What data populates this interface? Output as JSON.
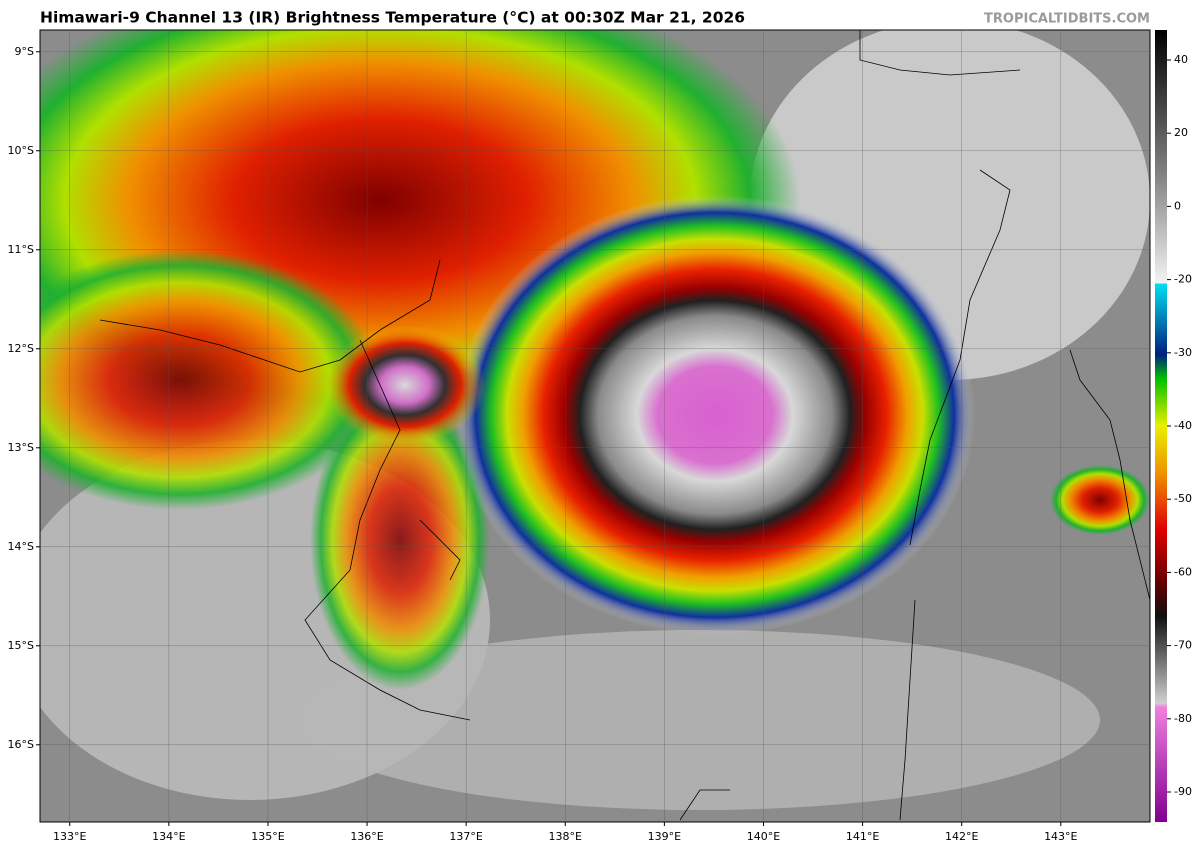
{
  "title": "Himawari-9 Channel 13 (IR) Brightness Temperature (°C) at 00:30Z Mar 21, 2026",
  "credit": "TROPICALTIDBITS.COM",
  "map": {
    "lonlim": [
      132.7,
      143.9
    ],
    "latlim": [
      -8.78,
      -16.78
    ],
    "lat_ticks": [
      {
        "value": -9,
        "label": "9°S"
      },
      {
        "value": -10,
        "label": "10°S"
      },
      {
        "value": -11,
        "label": "11°S"
      },
      {
        "value": -12,
        "label": "12°S"
      },
      {
        "value": -13,
        "label": "13°S"
      },
      {
        "value": -14,
        "label": "14°S"
      },
      {
        "value": -15,
        "label": "15°S"
      },
      {
        "value": -16,
        "label": "16°S"
      }
    ],
    "lon_ticks": [
      {
        "value": 133,
        "label": "133°E"
      },
      {
        "value": 134,
        "label": "134°E"
      },
      {
        "value": 135,
        "label": "135°E"
      },
      {
        "value": 136,
        "label": "136°E"
      },
      {
        "value": 137,
        "label": "137°E"
      },
      {
        "value": 138,
        "label": "138°E"
      },
      {
        "value": 139,
        "label": "139°E"
      },
      {
        "value": 140,
        "label": "140°E"
      },
      {
        "value": 141,
        "label": "141°E"
      },
      {
        "value": 142,
        "label": "142°E"
      },
      {
        "value": 143,
        "label": "143°E"
      }
    ]
  },
  "colorbar": {
    "ticks": [
      40,
      20,
      0,
      -20,
      -30,
      -40,
      -50,
      -60,
      -70,
      -80,
      -90
    ]
  }
}
